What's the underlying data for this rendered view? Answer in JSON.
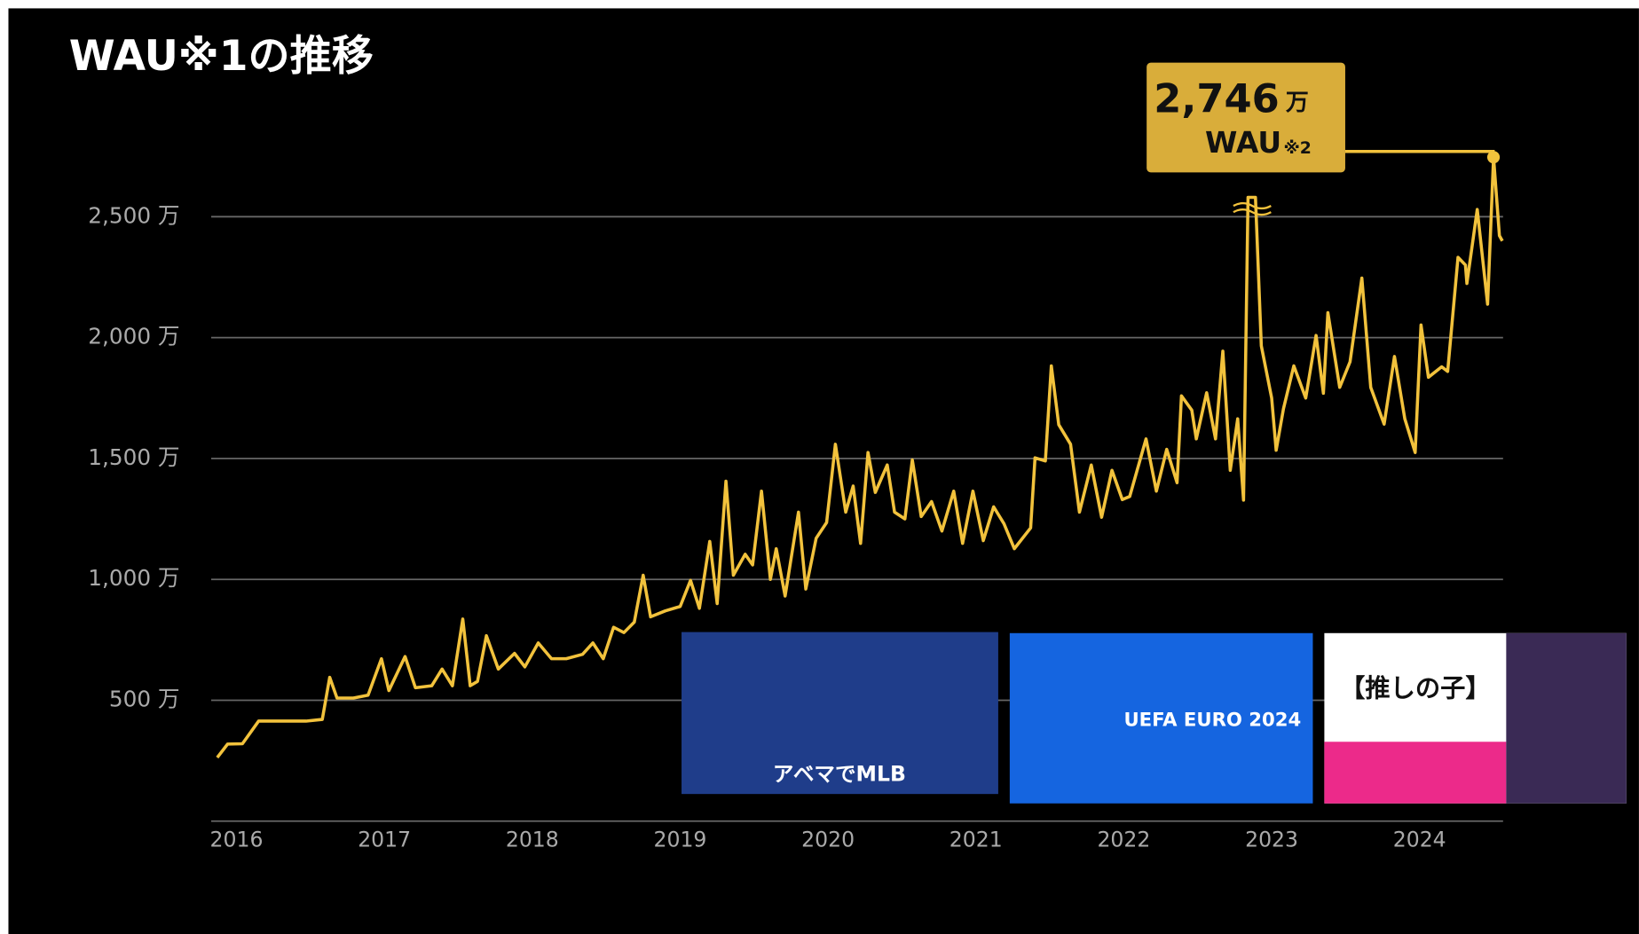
{
  "chart_data": {
    "type": "line",
    "title": "WAU※1の推移",
    "x": [
      2015.87,
      2015.94,
      2016.04,
      2016.15,
      2016.26,
      2016.36,
      2016.47,
      2016.58,
      2016.63,
      2016.68,
      2016.79,
      2016.89,
      2016.98,
      2017.03,
      2017.14,
      2017.21,
      2017.32,
      2017.39,
      2017.46,
      2017.53,
      2017.58,
      2017.63,
      2017.69,
      2017.77,
      2017.88,
      2017.95,
      2018.04,
      2018.13,
      2018.23,
      2018.34,
      2018.41,
      2018.48,
      2018.55,
      2018.62,
      2018.69,
      2018.75,
      2018.8,
      2018.9,
      2019.0,
      2019.07,
      2019.13,
      2019.2,
      2019.25,
      2019.31,
      2019.36,
      2019.44,
      2019.49,
      2019.55,
      2019.61,
      2019.65,
      2019.71,
      2019.8,
      2019.85,
      2019.92,
      2019.99,
      2020.05,
      2020.12,
      2020.17,
      2020.22,
      2020.27,
      2020.32,
      2020.4,
      2020.45,
      2020.52,
      2020.57,
      2020.63,
      2020.7,
      2020.77,
      2020.85,
      2020.91,
      2020.98,
      2021.05,
      2021.12,
      2021.19,
      2021.26,
      2021.37,
      2021.4,
      2021.47,
      2021.51,
      2021.56,
      2021.64,
      2021.7,
      2021.78,
      2021.85,
      2021.92,
      2021.99,
      2022.04,
      2022.15,
      2022.22,
      2022.29,
      2022.36,
      2022.39,
      2022.46,
      2022.49,
      2022.56,
      2022.62,
      2022.67,
      2022.72,
      2022.77,
      2022.81,
      2022.84,
      2022.89,
      2022.93,
      2023.0,
      2023.03,
      2023.08,
      2023.15,
      2023.23,
      2023.3,
      2023.35,
      2023.38,
      2023.46,
      2023.53,
      2023.61,
      2023.67,
      2023.76,
      2023.83,
      2023.9,
      2023.97,
      2024.01,
      2024.06,
      2024.15,
      2024.19,
      2024.26,
      2024.31,
      2024.32,
      2024.39,
      2024.46,
      2024.5,
      2024.54,
      2024.56
    ],
    "series": [
      {
        "name": "WAU",
        "color": "#f2c23c",
        "values": [
          263,
          319,
          320,
          414,
          414,
          414,
          414,
          421,
          595,
          509,
          509,
          521,
          672,
          540,
          681,
          552,
          560,
          629,
          560,
          836,
          560,
          578,
          767,
          629,
          694,
          638,
          737,
          672,
          672,
          690,
          737,
          672,
          802,
          780,
          823,
          1017,
          845,
          870,
          888,
          996,
          880,
          1157,
          900,
          1406,
          1017,
          1104,
          1060,
          1365,
          1000,
          1127,
          931,
          1278,
          960,
          1170,
          1235,
          1559,
          1278,
          1386,
          1149,
          1525,
          1360,
          1473,
          1278,
          1250,
          1494,
          1260,
          1322,
          1200,
          1365,
          1149,
          1365,
          1160,
          1300,
          1230,
          1127,
          1213,
          1503,
          1490,
          1883,
          1640,
          1559,
          1278,
          1473,
          1257,
          1451,
          1330,
          1343,
          1581,
          1365,
          1538,
          1400,
          1759,
          1700,
          1581,
          1772,
          1581,
          1944,
          1451,
          1664,
          1328,
          2580,
          2580,
          1966,
          1750,
          1534,
          1706,
          1883,
          1750,
          2009,
          1770,
          2103,
          1794,
          1900,
          2246,
          1794,
          1642,
          1922,
          1664,
          1525,
          2052,
          1836,
          1879,
          1860,
          2332,
          2300,
          2224,
          2530,
          2138,
          2746,
          2422,
          2400
        ]
      }
    ],
    "xlim": [
      2015.85,
      2024.6
    ],
    "xticks": [
      2016,
      2017,
      2018,
      2019,
      2020,
      2021,
      2022,
      2023,
      2024
    ],
    "ylim": [
      0,
      2800
    ],
    "yticks": [
      {
        "value": 500,
        "label": "500 万"
      },
      {
        "value": 1000,
        "label": "1,000 万"
      },
      {
        "value": 1500,
        "label": "1,500 万"
      },
      {
        "value": 2000,
        "label": "2,000 万"
      },
      {
        "value": 2500,
        "label": "2,500 万"
      }
    ],
    "grid": true,
    "annotation": {
      "value": "2,746",
      "unit": "万",
      "label": "WAU",
      "note": "※2"
    }
  },
  "banners": [
    "アベマでMLB",
    "UEFA EURO 2024",
    "【推しの子】"
  ]
}
